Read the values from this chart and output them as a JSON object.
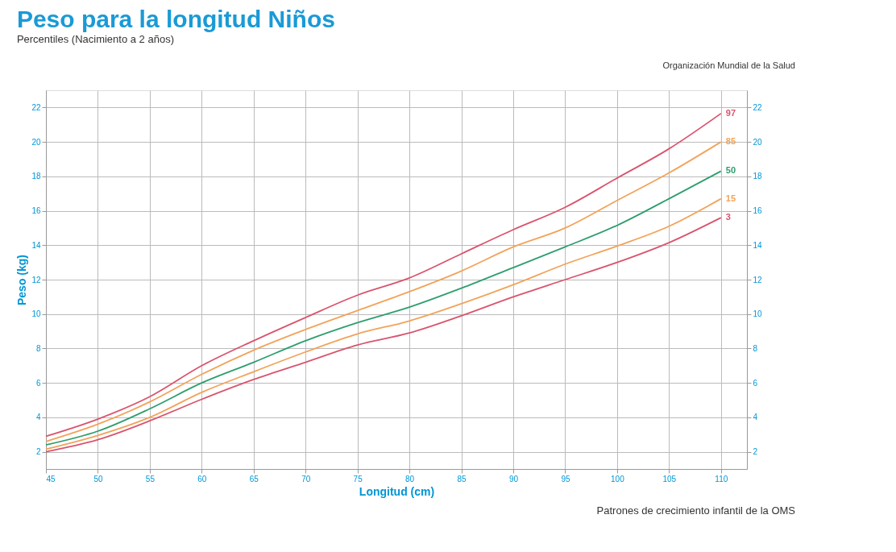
{
  "chart_data": {
    "type": "line",
    "title": "Peso para la longitud Niños",
    "subtitle": "Percentiles (Nacimiento a 2 años)",
    "xlabel": "Longitud (cm)",
    "ylabel": "Peso (kg)",
    "x": [
      45,
      50,
      55,
      60,
      65,
      70,
      75,
      80,
      85,
      90,
      95,
      100,
      105,
      110
    ],
    "series": [
      {
        "name": "97",
        "color": "#d9546e",
        "values": [
          2.9,
          3.9,
          5.2,
          7.0,
          8.45,
          9.8,
          11.1,
          12.1,
          13.5,
          14.9,
          16.2,
          17.9,
          19.6,
          21.65
        ]
      },
      {
        "name": "85",
        "color": "#f2a35a",
        "values": [
          2.6,
          3.6,
          4.9,
          6.5,
          7.9,
          9.1,
          10.2,
          11.3,
          12.5,
          13.9,
          15.0,
          16.6,
          18.2,
          20.0
        ]
      },
      {
        "name": "50",
        "color": "#2e9e6e",
        "values": [
          2.4,
          3.2,
          4.5,
          6.0,
          7.2,
          8.45,
          9.5,
          10.4,
          11.5,
          12.7,
          13.9,
          15.15,
          16.7,
          18.3
        ]
      },
      {
        "name": "15",
        "color": "#f2a35a",
        "values": [
          2.15,
          2.95,
          4.0,
          5.45,
          6.65,
          7.8,
          8.85,
          9.6,
          10.6,
          11.7,
          12.9,
          13.95,
          15.1,
          16.7
        ]
      },
      {
        "name": "3",
        "color": "#d9546e",
        "values": [
          2.0,
          2.7,
          3.8,
          5.05,
          6.2,
          7.2,
          8.2,
          8.9,
          9.9,
          11.0,
          12.0,
          13.0,
          14.15,
          15.6
        ]
      }
    ],
    "xlim": [
      45,
      112.5
    ],
    "xticks": [
      45,
      50,
      55,
      60,
      65,
      70,
      75,
      80,
      85,
      90,
      95,
      100,
      105,
      110
    ],
    "ylim": [
      1,
      23
    ],
    "yticks": [
      2,
      4,
      6,
      8,
      10,
      12,
      14,
      16,
      18,
      20,
      22
    ],
    "y2lim": [
      1,
      23
    ],
    "y2ticks": [
      2,
      4,
      6,
      8,
      10,
      12,
      14,
      16,
      18,
      20,
      22
    ],
    "grid": true,
    "legend": false,
    "marker": "none",
    "line_style": "solid",
    "annotations": [
      "Organización Mundial de la Salud",
      "Patrones de crecimiento infantil de la OMS"
    ]
  }
}
